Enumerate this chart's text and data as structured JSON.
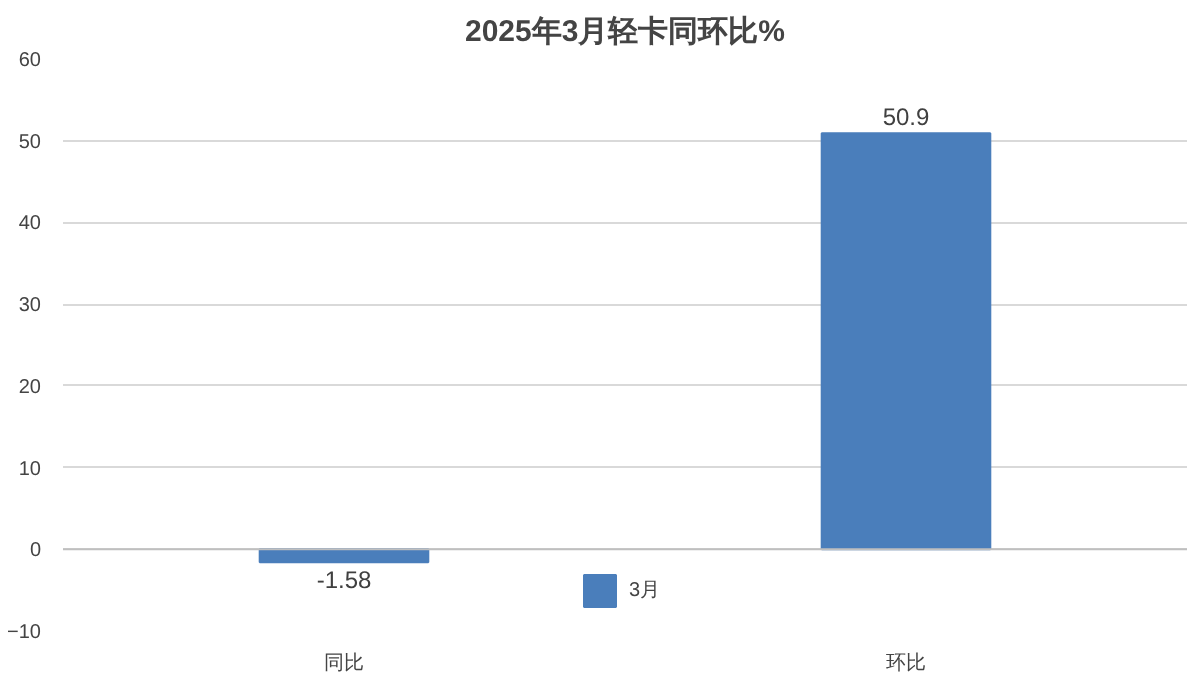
{
  "chart_data": {
    "type": "bar",
    "title": "2025年3月轻卡同环比%",
    "categories": [
      "同比",
      "环比"
    ],
    "series": [
      {
        "name": "3月",
        "color": "#4a7ebb",
        "values": [
          -1.58,
          50.9
        ]
      }
    ],
    "ylim": [
      -10,
      60
    ],
    "yticks": [
      -10,
      0,
      10,
      20,
      30,
      40,
      50,
      60
    ],
    "grid": "y",
    "legend": "bottom",
    "data_labels": true
  }
}
